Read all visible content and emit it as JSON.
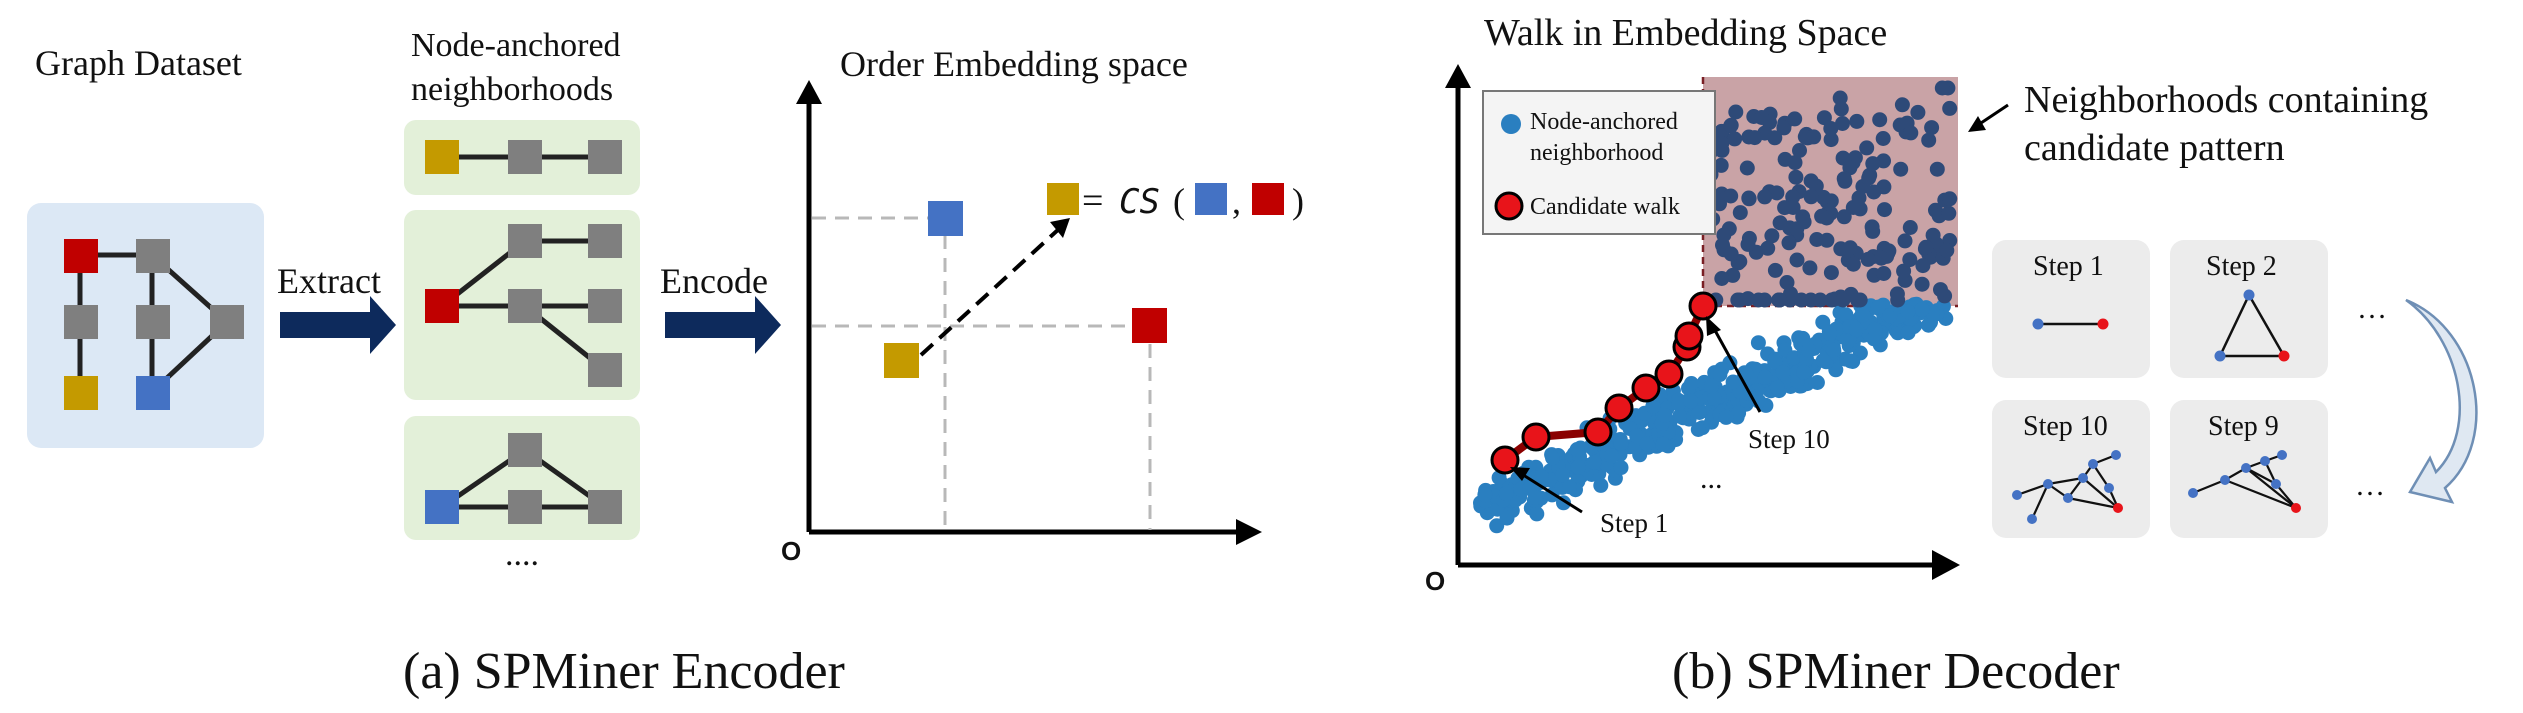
{
  "encoder": {
    "dataset_label": "Graph Dataset",
    "neighborhoods_label_1": "Node-anchored",
    "neighborhoods_label_2": "neighborhoods",
    "extract_label": "Extract",
    "ellipsis": "....",
    "encode_label": "Encode",
    "embed_title": "Order Embedding space",
    "origin_label": "O",
    "cs_eq": "=",
    "cs_label": "CS",
    "cs_open": "(",
    "cs_comma": ",",
    "cs_close": ")",
    "caption": "(a) SPMiner Encoder"
  },
  "decoder": {
    "walk_title": "Walk in Embedding Space",
    "legend_neighborhood_1": "Node-anchored",
    "legend_neighborhood_2": "neighborhood",
    "legend_walk": "Candidate walk",
    "region_label_1": "Neighborhoods containing",
    "region_label_2": "candidate pattern",
    "step1_label": "Step 1",
    "step10_label": "Step 10",
    "ellipsis_mid": "...",
    "origin_label": "O",
    "panel_step1": "Step 1",
    "panel_step2": "Step 2",
    "panel_step10": "Step 10",
    "panel_step9": "Step 9",
    "ellipsis_top": "…",
    "ellipsis_bottom": "…",
    "caption": "(b) SPMiner Decoder"
  },
  "colors": {
    "red_node": "#c00000",
    "gold_node": "#c49a00",
    "blue_node": "#4472c4",
    "gray_node": "#7f7f7f",
    "dataset_bg": "#dce8f5",
    "neighborhood_bg": "#e3f0d9",
    "arrow_navy": "#0d2a5c",
    "scatter_light": "#2a7fc0",
    "scatter_dark": "#2e4a78",
    "region_fill": "#c9a3a6",
    "walk_red": "#e8141a",
    "panel_bg": "#ececec"
  }
}
